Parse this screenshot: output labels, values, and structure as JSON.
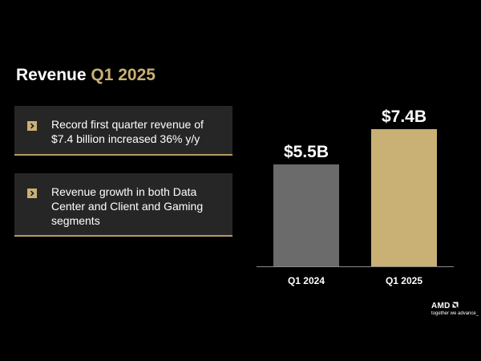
{
  "slide": {
    "title_prefix": "Revenue ",
    "title_highlight": "Q1 2025"
  },
  "bullets": [
    {
      "text": "Record first quarter revenue of $7.4 billion increased 36% y/y"
    },
    {
      "text": "Revenue growth in both Data Center and Client and Gaming segments"
    }
  ],
  "chart_data": {
    "type": "bar",
    "title": "",
    "xlabel": "",
    "ylabel": "",
    "categories": [
      "Q1 2024",
      "Q1 2025"
    ],
    "values": [
      5.5,
      7.4
    ],
    "data_labels": [
      "$5.5B",
      "$7.4B"
    ],
    "units": "billion USD",
    "ylim": [
      0,
      7.4
    ],
    "grid": false,
    "legend": "none"
  },
  "colors": {
    "background": "#000000",
    "accent_gold": "#c9b074",
    "bar_q1_2024": "#6b6b6b",
    "bar_q1_2025": "#c9b074",
    "card_bg": "#262626",
    "axis": "#8a8a8a"
  },
  "icons": {
    "bullet": "chevron-right-icon",
    "logo_mark": "amd-arrow-icon"
  },
  "branding": {
    "logo": "AMD",
    "tagline": "together we advance_"
  }
}
